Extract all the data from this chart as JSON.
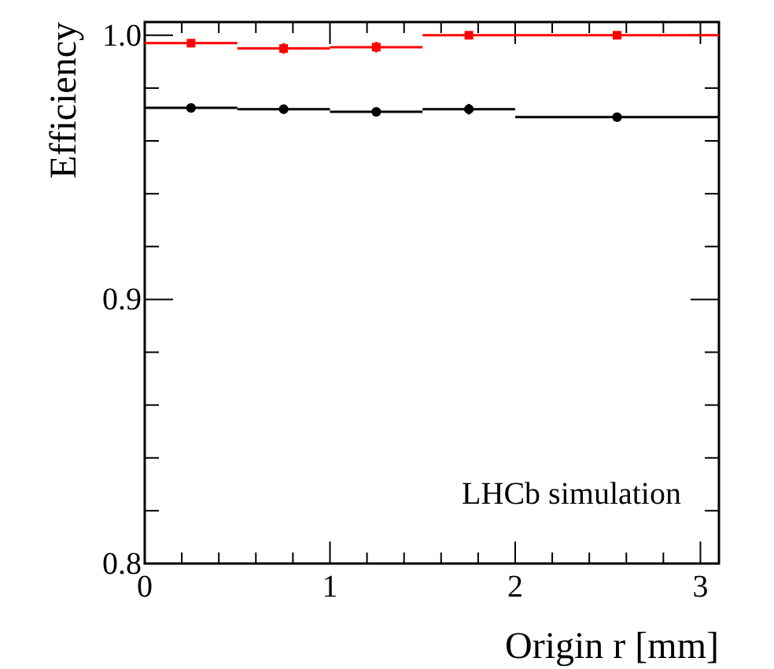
{
  "chart_data": {
    "type": "scatter",
    "xlabel": "Origin r [mm]",
    "ylabel": "Efficiency",
    "x": [
      0.25,
      0.75,
      1.25,
      1.75,
      2.55
    ],
    "xlim": [
      0,
      3.1
    ],
    "ylim": [
      0.8,
      1.005
    ],
    "xticks": [
      0,
      {
        "value": 0.2,
        "label": null
      },
      {
        "value": 0.4,
        "label": null
      },
      {
        "value": 0.6,
        "label": null
      },
      {
        "value": 0.8,
        "label": null
      },
      1,
      {
        "value": 1.2,
        "label": null
      },
      {
        "value": 1.4,
        "label": null
      },
      {
        "value": 1.6,
        "label": null
      },
      {
        "value": 1.8,
        "label": null
      },
      2,
      {
        "value": 2.2,
        "label": null
      },
      {
        "value": 2.4,
        "label": null
      },
      {
        "value": 2.6,
        "label": null
      },
      {
        "value": 2.8,
        "label": null
      },
      3
    ],
    "yticks": [
      0.8,
      {
        "value": 0.82,
        "label": null
      },
      {
        "value": 0.84,
        "label": null
      },
      {
        "value": 0.86,
        "label": null
      },
      {
        "value": 0.88,
        "label": null
      },
      0.9,
      {
        "value": 0.92,
        "label": null
      },
      {
        "value": 0.94,
        "label": null
      },
      {
        "value": 0.96,
        "label": null
      },
      {
        "value": 0.98,
        "label": null
      },
      {
        "value": 1.0,
        "label": "1.0"
      }
    ],
    "grid": false,
    "series": [
      {
        "color": "#ff0000",
        "marker": "square",
        "values": [
          0.997,
          0.995,
          0.9955,
          1.0,
          1.0
        ],
        "errors": [
          0.001,
          0.002,
          0.002,
          0.001,
          0.001
        ],
        "xerrors": [
          0.25,
          0.25,
          0.25,
          0.25,
          [
            2.0,
            3.1
          ]
        ]
      },
      {
        "color": "#000000",
        "marker": "circle",
        "values": [
          0.9725,
          0.972,
          0.971,
          0.972,
          0.969
        ],
        "errors": [
          0.001,
          0.001,
          0.001,
          0.002,
          0.001
        ],
        "xerrors": [
          0.25,
          0.25,
          0.25,
          0.25,
          [
            2.0,
            3.1
          ]
        ]
      }
    ],
    "annotations": [
      "LHCb simulation"
    ]
  }
}
